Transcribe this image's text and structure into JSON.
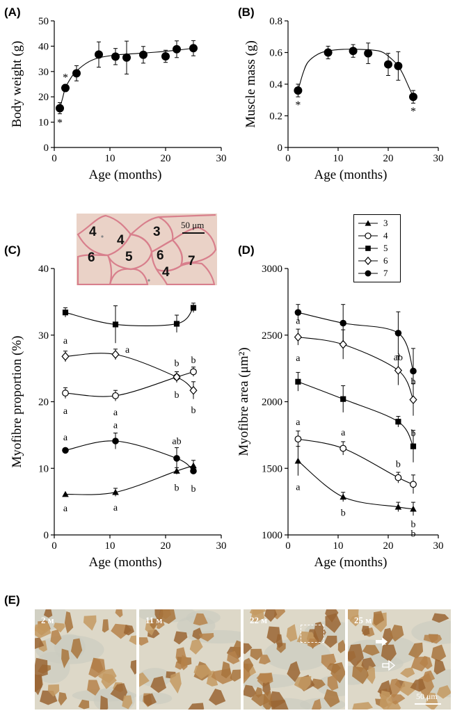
{
  "panel_labels": {
    "a": "(A)",
    "b": "(B)",
    "c": "(C)",
    "d": "(D)",
    "e": "(E)"
  },
  "inset": {
    "scale_label": "50 μm",
    "cells": [
      {
        "id": "c1",
        "text": "4"
      },
      {
        "id": "c2",
        "text": "4"
      },
      {
        "id": "c3",
        "text": "3"
      },
      {
        "id": "c4",
        "text": "6"
      },
      {
        "id": "c5",
        "text": "5"
      },
      {
        "id": "c6",
        "text": "6"
      },
      {
        "id": "c7",
        "text": "7"
      },
      {
        "id": "c8",
        "text": "4"
      }
    ]
  },
  "colors": {
    "muscle_bg": "#ead2c7",
    "fibre_outline": "#d87f8c",
    "stain_brown": "#a8743c",
    "ihc_bg": "#ddd8c8"
  },
  "legend": {
    "entries": [
      {
        "label": "3",
        "marker": "triangle-filled"
      },
      {
        "label": "4",
        "marker": "circle-open"
      },
      {
        "label": "5",
        "marker": "square-filled"
      },
      {
        "label": "6",
        "marker": "diamond-open"
      },
      {
        "label": "7",
        "marker": "circle-filled"
      }
    ]
  },
  "chart_data": [
    {
      "id": "A",
      "type": "scatter",
      "ylabel": "Body weight (g)",
      "xlabel": "Age (months)",
      "xlim": [
        0,
        30
      ],
      "ylim": [
        0,
        50
      ],
      "xticks": [
        0,
        10,
        20,
        30
      ],
      "yticks": [
        0,
        10,
        20,
        30,
        40,
        50
      ],
      "series": [
        {
          "marker": "circle-filled",
          "points": [
            [
              1,
              15.5
            ],
            [
              2,
              23.5
            ],
            [
              4,
              29.3
            ],
            [
              8,
              36.7
            ],
            [
              11,
              35.9
            ],
            [
              13,
              35.5
            ],
            [
              16,
              36.6
            ],
            [
              20,
              36.0
            ],
            [
              22,
              38.8
            ],
            [
              25,
              39.2
            ]
          ],
          "errors": [
            2.2,
            1.4,
            3.0,
            5.0,
            3.2,
            6.5,
            3.3,
            2.4,
            3.3,
            3.0
          ],
          "fit": [
            [
              1,
              15.5
            ],
            [
              1.5,
              19.5
            ],
            [
              2,
              23.5
            ],
            [
              3,
              27.5
            ],
            [
              4,
              30.2
            ],
            [
              6,
              33.6
            ],
            [
              8,
              35.4
            ],
            [
              11,
              36.5
            ],
            [
              14,
              37.0
            ],
            [
              18,
              37.6
            ],
            [
              22,
              38.4
            ],
            [
              25,
              39.2
            ]
          ]
        }
      ],
      "annotations": [
        {
          "text": "*",
          "x": 1,
          "y": 15.5,
          "pos": "below"
        },
        {
          "text": "*",
          "x": 2,
          "y": 23.5,
          "pos": "above"
        }
      ]
    },
    {
      "id": "B",
      "type": "scatter",
      "ylabel": "Muscle mass (g)",
      "xlabel": "Age (months)",
      "xlim": [
        0,
        30
      ],
      "ylim": [
        0,
        0.8
      ],
      "xticks": [
        0,
        10,
        20,
        30
      ],
      "yticks": [
        0,
        0.2,
        0.4,
        0.6,
        0.8
      ],
      "ytick_labels": [
        "0",
        "0.2",
        "0.4",
        "0.6",
        "0.8"
      ],
      "series": [
        {
          "marker": "circle-filled",
          "points": [
            [
              2,
              0.36
            ],
            [
              8,
              0.6
            ],
            [
              13,
              0.61
            ],
            [
              16,
              0.595
            ],
            [
              20,
              0.525
            ],
            [
              22,
              0.515
            ],
            [
              25,
              0.32
            ]
          ],
          "errors": [
            0.04,
            0.04,
            0.04,
            0.065,
            0.07,
            0.09,
            0.04
          ],
          "fit": [
            [
              2,
              0.36
            ],
            [
              3,
              0.47
            ],
            [
              4,
              0.54
            ],
            [
              6,
              0.59
            ],
            [
              8,
              0.61
            ],
            [
              11,
              0.62
            ],
            [
              14,
              0.62
            ],
            [
              17,
              0.615
            ],
            [
              19,
              0.6
            ],
            [
              21,
              0.55
            ],
            [
              22,
              0.515
            ],
            [
              23,
              0.46
            ],
            [
              24,
              0.39
            ],
            [
              25,
              0.32
            ]
          ]
        }
      ],
      "annotations": [
        {
          "text": "*",
          "x": 2,
          "y": 0.36,
          "pos": "below"
        },
        {
          "text": "*",
          "x": 25,
          "y": 0.32,
          "pos": "below"
        }
      ]
    },
    {
      "id": "C",
      "type": "line",
      "ylabel": "Myofibre proportion (%)",
      "xlabel": "Age (months)",
      "xlim": [
        0,
        30
      ],
      "ylim": [
        0,
        40
      ],
      "xticks": [
        0,
        10,
        20,
        30
      ],
      "yticks": [
        0,
        10,
        20,
        30,
        40
      ],
      "series": [
        {
          "name": "3",
          "marker": "triangle-filled",
          "points": [
            [
              2,
              6.1
            ],
            [
              11,
              6.4
            ],
            [
              22,
              9.6
            ],
            [
              25,
              10.4
            ]
          ],
          "errors": [
            0,
            0.6,
            0.5,
            0.8
          ]
        },
        {
          "name": "4",
          "marker": "circle-open",
          "points": [
            [
              2,
              21.3
            ],
            [
              11,
              20.9
            ],
            [
              22,
              23.7
            ],
            [
              25,
              24.5
            ]
          ],
          "errors": [
            0.8,
            0.8,
            0.8,
            0.7
          ]
        },
        {
          "name": "5",
          "marker": "square-filled",
          "points": [
            [
              2,
              33.4
            ],
            [
              11,
              31.6
            ],
            [
              22,
              31.7
            ],
            [
              25,
              34.1
            ]
          ],
          "errors": [
            0.7,
            2.8,
            1.3,
            0.7
          ]
        },
        {
          "name": "6",
          "marker": "diamond-open",
          "points": [
            [
              2,
              26.8
            ],
            [
              11,
              27.1
            ],
            [
              22,
              23.7
            ],
            [
              25,
              21.7
            ]
          ],
          "errors": [
            0.8,
            0.8,
            0.8,
            1.3
          ]
        },
        {
          "name": "7",
          "marker": "circle-filled",
          "points": [
            [
              2,
              12.7
            ],
            [
              11,
              14.1
            ],
            [
              22,
              11.5
            ],
            [
              25,
              9.6
            ]
          ],
          "errors": [
            0,
            1.2,
            1.6,
            0
          ]
        }
      ],
      "annotations": [
        {
          "text": "a",
          "x": 2,
          "y": 28.5,
          "pos": "above"
        },
        {
          "text": "a",
          "x": 12.5,
          "y": 27.8,
          "pos": "right"
        },
        {
          "text": "b",
          "x": 22,
          "y": 25.1,
          "pos": "above"
        },
        {
          "text": "b",
          "x": 25,
          "y": 25.6,
          "pos": "above"
        },
        {
          "text": "a",
          "x": 2,
          "y": 19.2,
          "pos": "below"
        },
        {
          "text": "a",
          "x": 11,
          "y": 19.0,
          "pos": "below"
        },
        {
          "text": "b",
          "x": 22,
          "y": 21.6,
          "pos": "below"
        },
        {
          "text": "b",
          "x": 25,
          "y": 19.3,
          "pos": "below"
        },
        {
          "text": "a",
          "x": 2,
          "y": 14.0,
          "pos": "above"
        },
        {
          "text": "a",
          "x": 11,
          "y": 15.8,
          "pos": "above"
        },
        {
          "text": "ab",
          "x": 22,
          "y": 13.4,
          "pos": "above"
        },
        {
          "text": "b",
          "x": 25,
          "y": 7.5,
          "pos": "below"
        },
        {
          "text": "a",
          "x": 2,
          "y": 4.6,
          "pos": "below"
        },
        {
          "text": "a",
          "x": 11,
          "y": 4.7,
          "pos": "below"
        },
        {
          "text": "b",
          "x": 22,
          "y": 7.7,
          "pos": "below"
        }
      ]
    },
    {
      "id": "D",
      "type": "line",
      "ylabel": "Myofibre area (μm²)",
      "xlabel": "Age (months)",
      "xlim": [
        0,
        30
      ],
      "ylim": [
        1000,
        3000
      ],
      "xticks": [
        0,
        10,
        20,
        30
      ],
      "yticks": [
        1000,
        1500,
        2000,
        2500,
        3000
      ],
      "series": [
        {
          "name": "3",
          "marker": "triangle-filled",
          "points": [
            [
              2,
              1555
            ],
            [
              11,
              1285
            ],
            [
              22,
              1210
            ],
            [
              25,
              1195
            ]
          ],
          "errors": [
            110,
            35,
            35,
            50
          ]
        },
        {
          "name": "4",
          "marker": "circle-open",
          "points": [
            [
              2,
              1720
            ],
            [
              11,
              1650
            ],
            [
              22,
              1430
            ],
            [
              25,
              1380
            ]
          ],
          "errors": [
            60,
            50,
            40,
            70
          ]
        },
        {
          "name": "5",
          "marker": "square-filled",
          "points": [
            [
              2,
              2150
            ],
            [
              11,
              2020
            ],
            [
              22,
              1850
            ],
            [
              25,
              1665
            ]
          ],
          "errors": [
            70,
            100,
            40,
            120
          ]
        },
        {
          "name": "6",
          "marker": "diamond-open",
          "points": [
            [
              2,
              2485
            ],
            [
              11,
              2430
            ],
            [
              22,
              2235
            ],
            [
              25,
              2015
            ]
          ],
          "errors": [
            60,
            110,
            110,
            120
          ]
        },
        {
          "name": "7",
          "marker": "circle-filled",
          "points": [
            [
              2,
              2670
            ],
            [
              11,
              2590
            ],
            [
              22,
              2515
            ],
            [
              25,
              2230
            ]
          ],
          "errors": [
            60,
            140,
            160,
            170
          ]
        }
      ],
      "annotations": [
        {
          "text": "a",
          "x": 2,
          "y": 2575,
          "pos": "above"
        },
        {
          "text": "a",
          "x": 2,
          "y": 1815,
          "pos": "above"
        },
        {
          "text": "a",
          "x": 11,
          "y": 1735,
          "pos": "above"
        },
        {
          "text": "a",
          "x": 2,
          "y": 2295,
          "pos": "above"
        },
        {
          "text": "a",
          "x": 2,
          "y": 1390,
          "pos": "below"
        },
        {
          "text": "b",
          "x": 11,
          "y": 1195,
          "pos": "below"
        },
        {
          "text": "ab",
          "x": 22,
          "y": 2300,
          "pos": "above"
        },
        {
          "text": "b",
          "x": 25,
          "y": 2120,
          "pos": "above"
        },
        {
          "text": "b",
          "x": 22,
          "y": 1500,
          "pos": "above"
        },
        {
          "text": "b",
          "x": 25,
          "y": 1730,
          "pos": "above"
        },
        {
          "text": "b",
          "x": 25,
          "y": 1110,
          "pos": "below"
        },
        {
          "text": "b",
          "x": 25,
          "y": 1040,
          "pos": "below"
        }
      ]
    }
  ],
  "panel_e": {
    "images": [
      {
        "label": "2 м"
      },
      {
        "label": "11 м"
      },
      {
        "label": "22 м"
      },
      {
        "label": "25 м"
      }
    ],
    "scale_label": "50 μm"
  }
}
